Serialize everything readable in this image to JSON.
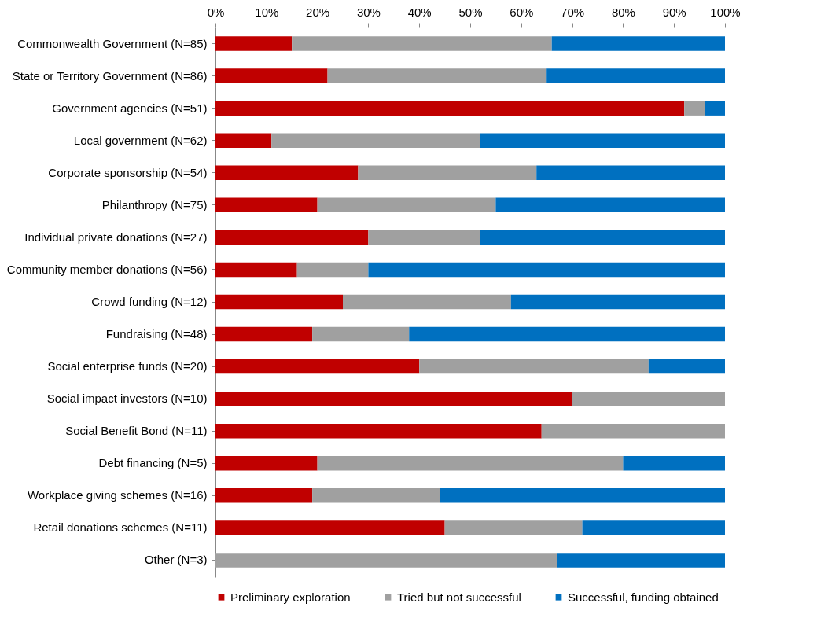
{
  "chart_data": {
    "type": "bar",
    "orientation": "horizontal",
    "stacked": true,
    "legend": "bottom",
    "grid": false,
    "categories": [
      "Commonwealth Government (N=85)",
      "State or Territory Government (N=86)",
      "Government agencies (N=51)",
      "Local government (N=62)",
      "Corporate sponsorship (N=54)",
      "Philanthropy (N=75)",
      "Individual private donations (N=27)",
      "Community member donations (N=56)",
      "Crowd funding (N=12)",
      "Fundraising (N=48)",
      "Social enterprise funds (N=20)",
      "Social impact investors (N=10)",
      "Social Benefit Bond (N=11)",
      "Debt financing (N=5)",
      "Workplace giving schemes (N=16)",
      "Retail donations schemes (N=11)",
      "Other (N=3)"
    ],
    "series": [
      {
        "name": "Preliminary exploration",
        "color": "#c00000",
        "values": [
          15,
          22,
          92,
          11,
          28,
          20,
          30,
          16,
          25,
          19,
          40,
          70,
          64,
          20,
          19,
          45,
          0
        ]
      },
      {
        "name": "Tried but not successful",
        "color": "#a0a0a0",
        "values": [
          51,
          43,
          4,
          41,
          35,
          35,
          22,
          14,
          33,
          19,
          45,
          30,
          36,
          60,
          25,
          27,
          67
        ]
      },
      {
        "name": "Successful, funding obtained",
        "color": "#0070c0",
        "values": [
          34,
          35,
          4,
          48,
          37,
          45,
          48,
          70,
          42,
          62,
          15,
          0,
          0,
          20,
          56,
          28,
          33
        ]
      }
    ],
    "xlim": [
      0,
      100
    ],
    "xticks": [
      {
        "value": 0,
        "label": "0%"
      },
      {
        "value": 10,
        "label": "10%"
      },
      {
        "value": 20,
        "label": "20%"
      },
      {
        "value": 30,
        "label": "30%"
      },
      {
        "value": 40,
        "label": "40%"
      },
      {
        "value": 50,
        "label": "50%"
      },
      {
        "value": 60,
        "label": "60%"
      },
      {
        "value": 70,
        "label": "70%"
      },
      {
        "value": 80,
        "label": "80%"
      },
      {
        "value": 90,
        "label": "90%"
      },
      {
        "value": 100,
        "label": "100%"
      }
    ]
  }
}
